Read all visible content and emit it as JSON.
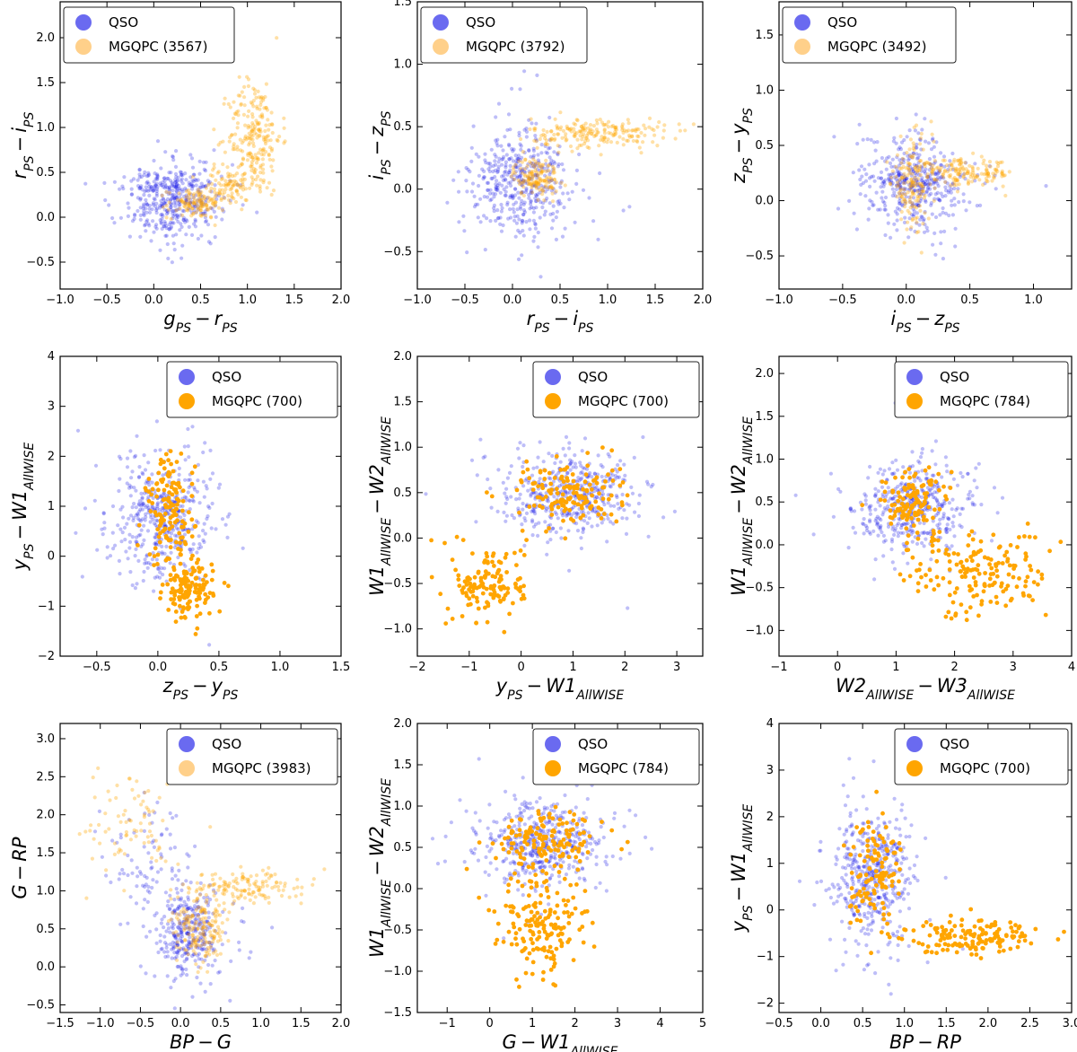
{
  "colors": {
    "qso": "#1414e6",
    "mgqpc": "#ffa500",
    "qso_legend": "#6a6af0",
    "mgqpc_legend_faint": "#ffd08a"
  },
  "chart_data": [
    {
      "type": "scatter",
      "id": "p1",
      "xlabel": {
        "base": "g",
        "sub1": "PS",
        "op": "−",
        "base2": "r",
        "sub2": "PS"
      },
      "ylabel": {
        "base": "r",
        "sub1": "PS",
        "op": "−",
        "base2": "i",
        "sub2": "PS"
      },
      "xlim": [
        -1.0,
        2.0
      ],
      "ylim": [
        -0.8,
        2.4
      ],
      "xticks": [
        "−1.0",
        "−0.5",
        "0.0",
        "0.5",
        "1.0",
        "1.5",
        "2.0"
      ],
      "xtick_values": [
        -1.0,
        -0.5,
        0.0,
        0.5,
        1.0,
        1.5,
        2.0
      ],
      "yticks": [
        "−0.5",
        "0.0",
        "0.5",
        "1.0",
        "1.5",
        "2.0"
      ],
      "ytick_values": [
        -0.5,
        0.0,
        0.5,
        1.0,
        1.5,
        2.0
      ],
      "legend": {
        "position": "top-left",
        "qso": "QSO",
        "mgqpc": "MGQPC (3567)"
      },
      "faint_mgqpc": true,
      "qso_clusters": [
        {
          "cx": 0.2,
          "cy": 0.2,
          "sx": 0.25,
          "sy": 0.2,
          "n": 430
        }
      ],
      "mgqpc_clusters": [
        {
          "cx": 0.45,
          "cy": 0.15,
          "sx": 0.15,
          "sy": 0.08,
          "n": 120
        },
        {
          "cx": 0.8,
          "cy": 0.35,
          "sx": 0.15,
          "sy": 0.1,
          "n": 90
        },
        {
          "cx": 1.08,
          "cy": 0.9,
          "sx": 0.14,
          "sy": 0.32,
          "n": 220
        }
      ]
    },
    {
      "type": "scatter",
      "id": "p2",
      "xlabel": {
        "base": "r",
        "sub1": "PS",
        "op": "−",
        "base2": "i",
        "sub2": "PS"
      },
      "ylabel": {
        "base": "i",
        "sub1": "PS",
        "op": "−",
        "base2": "z",
        "sub2": "PS"
      },
      "xlim": [
        -1.0,
        2.0
      ],
      "ylim": [
        -0.8,
        1.5
      ],
      "xticks": [
        "−1.0",
        "−0.5",
        "0.0",
        "0.5",
        "1.0",
        "1.5",
        "2.0"
      ],
      "xtick_values": [
        -1.0,
        -0.5,
        0.0,
        0.5,
        1.0,
        1.5,
        2.0
      ],
      "yticks": [
        "−0.5",
        "0.0",
        "0.5",
        "1.0",
        "1.5"
      ],
      "ytick_values": [
        -0.5,
        0.0,
        0.5,
        1.0,
        1.5
      ],
      "legend": {
        "position": "top-left",
        "qso": "QSO",
        "mgqpc": "MGQPC (3792)"
      },
      "faint_mgqpc": true,
      "qso_clusters": [
        {
          "cx": 0.1,
          "cy": 0.05,
          "sx": 0.25,
          "sy": 0.2,
          "n": 430
        }
      ],
      "mgqpc_clusters": [
        {
          "cx": 0.25,
          "cy": 0.1,
          "sx": 0.12,
          "sy": 0.08,
          "n": 140
        },
        {
          "cx": 0.9,
          "cy": 0.45,
          "sx": 0.35,
          "sy": 0.06,
          "n": 200
        }
      ]
    },
    {
      "type": "scatter",
      "id": "p3",
      "xlabel": {
        "base": "i",
        "sub1": "PS",
        "op": "−",
        "base2": "z",
        "sub2": "PS"
      },
      "ylabel": {
        "base": "z",
        "sub1": "PS",
        "op": "−",
        "base2": "y",
        "sub2": "PS"
      },
      "xlim": [
        -1.0,
        1.3
      ],
      "ylim": [
        -0.8,
        1.8
      ],
      "xticks": [
        "−1.0",
        "−0.5",
        "0.0",
        "0.5",
        "1.0"
      ],
      "xtick_values": [
        -1.0,
        -0.5,
        0.0,
        0.5,
        1.0
      ],
      "yticks": [
        "−0.5",
        "0.0",
        "0.5",
        "1.0",
        "1.5"
      ],
      "ytick_values": [
        -0.5,
        0.0,
        0.5,
        1.0,
        1.5
      ],
      "legend": {
        "position": "top-left",
        "qso": "QSO",
        "mgqpc": "MGQPC (3492)"
      },
      "faint_mgqpc": true,
      "qso_clusters": [
        {
          "cx": 0.05,
          "cy": 0.15,
          "sx": 0.2,
          "sy": 0.2,
          "n": 430
        }
      ],
      "mgqpc_clusters": [
        {
          "cx": 0.05,
          "cy": 0.15,
          "sx": 0.08,
          "sy": 0.2,
          "n": 150
        },
        {
          "cx": 0.45,
          "cy": 0.25,
          "sx": 0.2,
          "sy": 0.06,
          "n": 160
        }
      ]
    },
    {
      "type": "scatter",
      "id": "p4",
      "xlabel": {
        "base": "z",
        "sub1": "PS",
        "op": "−",
        "base2": "y",
        "sub2": "PS"
      },
      "ylabel": {
        "base": "y",
        "sub1": "PS",
        "op": "−",
        "base2": "W1",
        "sub2": "AllWISE"
      },
      "xlim": [
        -0.8,
        1.5
      ],
      "ylim": [
        -2.0,
        4.0
      ],
      "xticks": [
        "−0.5",
        "0.0",
        "0.5",
        "1.0",
        "1.5"
      ],
      "xtick_values": [
        -0.5,
        0.0,
        0.5,
        1.0,
        1.5
      ],
      "yticks": [
        "−2",
        "−1",
        "0",
        "1",
        "2",
        "3",
        "4"
      ],
      "ytick_values": [
        -2,
        -1,
        0,
        1,
        2,
        3,
        4
      ],
      "legend": {
        "position": "top-right",
        "qso": "QSO",
        "mgqpc": "MGQPC (700)"
      },
      "faint_mgqpc": false,
      "qso_clusters": [
        {
          "cx": 0.05,
          "cy": 0.8,
          "sx": 0.2,
          "sy": 0.6,
          "n": 450
        }
      ],
      "mgqpc_clusters": [
        {
          "cx": 0.1,
          "cy": 0.9,
          "sx": 0.1,
          "sy": 0.55,
          "n": 140
        },
        {
          "cx": 0.25,
          "cy": -0.7,
          "sx": 0.1,
          "sy": 0.3,
          "n": 130
        }
      ]
    },
    {
      "type": "scatter",
      "id": "p5",
      "xlabel": {
        "base": "y",
        "sub1": "PS",
        "op": "−",
        "base2": "W1",
        "sub2": "AllWISE"
      },
      "ylabel": {
        "base": "W1",
        "sub1": "AllWISE",
        "op": "−",
        "base2": "W2",
        "sub2": "AllWISE"
      },
      "xlim": [
        -2.0,
        3.5
      ],
      "ylim": [
        -1.3,
        2.0
      ],
      "xticks": [
        "−2",
        "−1",
        "0",
        "1",
        "2",
        "3"
      ],
      "xtick_values": [
        -2,
        -1,
        0,
        1,
        2,
        3
      ],
      "yticks": [
        "−1.0",
        "−0.5",
        "0.0",
        "0.5",
        "1.0",
        "1.5",
        "2.0"
      ],
      "ytick_values": [
        -1.0,
        -0.5,
        0.0,
        0.5,
        1.0,
        1.5,
        2.0
      ],
      "legend": {
        "position": "top-right",
        "qso": "QSO",
        "mgqpc": "MGQPC (700)"
      },
      "faint_mgqpc": false,
      "qso_clusters": [
        {
          "cx": 0.9,
          "cy": 0.5,
          "sx": 0.6,
          "sy": 0.22,
          "n": 450
        }
      ],
      "mgqpc_clusters": [
        {
          "cx": 0.9,
          "cy": 0.5,
          "sx": 0.5,
          "sy": 0.18,
          "n": 150
        },
        {
          "cx": -0.6,
          "cy": -0.5,
          "sx": 0.35,
          "sy": 0.22,
          "n": 140
        }
      ]
    },
    {
      "type": "scatter",
      "id": "p6",
      "xlabel": {
        "base": "W2",
        "sub1": "AllWISE",
        "op": "−",
        "base2": "W3",
        "sub2": "AllWISE"
      },
      "ylabel": {
        "base": "W1",
        "sub1": "AllWISE",
        "op": "−",
        "base2": "W2",
        "sub2": "AllWISE"
      },
      "xlim": [
        -1.0,
        4.0
      ],
      "ylim": [
        -1.3,
        2.2
      ],
      "xticks": [
        "−1",
        "0",
        "1",
        "2",
        "3",
        "4"
      ],
      "xtick_values": [
        -1,
        0,
        1,
        2,
        3,
        4
      ],
      "yticks": [
        "−1.0",
        "−0.5",
        "0.0",
        "0.5",
        "1.0",
        "1.5",
        "2.0"
      ],
      "ytick_values": [
        -1.0,
        -0.5,
        0.0,
        0.5,
        1.0,
        1.5,
        2.0
      ],
      "legend": {
        "position": "top-right",
        "qso": "QSO",
        "mgqpc": "MGQPC (784)"
      },
      "faint_mgqpc": false,
      "qso_clusters": [
        {
          "cx": 1.3,
          "cy": 0.45,
          "sx": 0.45,
          "sy": 0.25,
          "n": 450
        }
      ],
      "mgqpc_clusters": [
        {
          "cx": 1.3,
          "cy": 0.5,
          "sx": 0.3,
          "sy": 0.2,
          "n": 120
        },
        {
          "cx": 2.4,
          "cy": -0.35,
          "sx": 0.6,
          "sy": 0.25,
          "n": 170
        }
      ]
    },
    {
      "type": "scatter",
      "id": "p7",
      "xlabel": {
        "base": "BP",
        "sub1": "",
        "op": "−",
        "base2": "G",
        "sub2": ""
      },
      "ylabel": {
        "base": "G",
        "sub1": "",
        "op": "−",
        "base2": "RP",
        "sub2": ""
      },
      "xlim": [
        -1.5,
        2.0
      ],
      "ylim": [
        -0.6,
        3.2
      ],
      "xticks": [
        "−1.5",
        "−1.0",
        "−0.5",
        "0.0",
        "0.5",
        "1.0",
        "1.5",
        "2.0"
      ],
      "xtick_values": [
        -1.5,
        -1.0,
        -0.5,
        0.0,
        0.5,
        1.0,
        1.5,
        2.0
      ],
      "yticks": [
        "−0.5",
        "0.0",
        "0.5",
        "1.0",
        "1.5",
        "2.0",
        "2.5",
        "3.0"
      ],
      "ytick_values": [
        -0.5,
        0.0,
        0.5,
        1.0,
        1.5,
        2.0,
        2.5,
        3.0
      ],
      "legend": {
        "position": "top-right",
        "qso": "QSO",
        "mgqpc": "MGQPC (3983)"
      },
      "faint_mgqpc": true,
      "qso_clusters": [
        {
          "cx": 0.1,
          "cy": 0.45,
          "sx": 0.2,
          "sy": 0.3,
          "n": 320
        },
        {
          "cx": -0.4,
          "cy": 1.4,
          "sx": 0.25,
          "sy": 0.35,
          "n": 80
        }
      ],
      "mgqpc_clusters": [
        {
          "cx": 0.25,
          "cy": 0.45,
          "sx": 0.18,
          "sy": 0.2,
          "n": 170
        },
        {
          "cx": 0.8,
          "cy": 1.05,
          "sx": 0.35,
          "sy": 0.12,
          "n": 140
        },
        {
          "cx": -0.6,
          "cy": 1.8,
          "sx": 0.3,
          "sy": 0.35,
          "n": 80
        }
      ]
    },
    {
      "type": "scatter",
      "id": "p8",
      "xlabel": {
        "base": "G",
        "sub1": "",
        "op": "−",
        "base2": "W1",
        "sub2": "AllWISE"
      },
      "ylabel": {
        "base": "W1",
        "sub1": "AllWISE",
        "op": "−",
        "base2": "W2",
        "sub2": "AllWISE"
      },
      "xlim": [
        -1.7,
        5.0
      ],
      "ylim": [
        -1.5,
        2.0
      ],
      "xticks": [
        "−1",
        "0",
        "1",
        "2",
        "3",
        "4",
        "5"
      ],
      "xtick_values": [
        -1,
        0,
        1,
        2,
        3,
        4,
        5
      ],
      "yticks": [
        "−1.5",
        "−1.0",
        "−0.5",
        "0.0",
        "0.5",
        "1.0",
        "1.5",
        "2.0"
      ],
      "ytick_values": [
        -1.5,
        -1.0,
        -0.5,
        0.0,
        0.5,
        1.0,
        1.5,
        2.0
      ],
      "legend": {
        "position": "top-right",
        "qso": "QSO",
        "mgqpc": "MGQPC (784)"
      },
      "faint_mgqpc": false,
      "qso_clusters": [
        {
          "cx": 1.3,
          "cy": 0.55,
          "sx": 0.75,
          "sy": 0.25,
          "n": 450
        }
      ],
      "mgqpc_clusters": [
        {
          "cx": 1.4,
          "cy": 0.55,
          "sx": 0.6,
          "sy": 0.2,
          "n": 150
        },
        {
          "cx": 1.2,
          "cy": -0.45,
          "sx": 0.55,
          "sy": 0.3,
          "n": 160
        }
      ]
    },
    {
      "type": "scatter",
      "id": "p9",
      "xlabel": {
        "base": "BP",
        "sub1": "",
        "op": "−",
        "base2": "RP",
        "sub2": ""
      },
      "ylabel": {
        "base": "y",
        "sub1": "PS",
        "op": "−",
        "base2": "W1",
        "sub2": "AllWISE"
      },
      "xlim": [
        -0.5,
        3.0
      ],
      "ylim": [
        -2.2,
        4.0
      ],
      "xticks": [
        "−0.5",
        "0.0",
        "0.5",
        "1.0",
        "1.5",
        "2.0",
        "2.5",
        "3.0"
      ],
      "xtick_values": [
        -0.5,
        0.0,
        0.5,
        1.0,
        1.5,
        2.0,
        2.5,
        3.0
      ],
      "yticks": [
        "−2",
        "−1",
        "0",
        "1",
        "2",
        "3",
        "4"
      ],
      "ytick_values": [
        -2,
        -1,
        0,
        1,
        2,
        3,
        4
      ],
      "legend": {
        "position": "top-right",
        "qso": "QSO",
        "mgqpc": "MGQPC (700)"
      },
      "faint_mgqpc": false,
      "qso_clusters": [
        {
          "cx": 0.6,
          "cy": 0.7,
          "sx": 0.22,
          "sy": 0.7,
          "n": 450
        }
      ],
      "mgqpc_clusters": [
        {
          "cx": 0.65,
          "cy": 0.9,
          "sx": 0.15,
          "sy": 0.6,
          "n": 120
        },
        {
          "cx": 1.8,
          "cy": -0.55,
          "sx": 0.4,
          "sy": 0.18,
          "n": 150
        }
      ]
    }
  ]
}
